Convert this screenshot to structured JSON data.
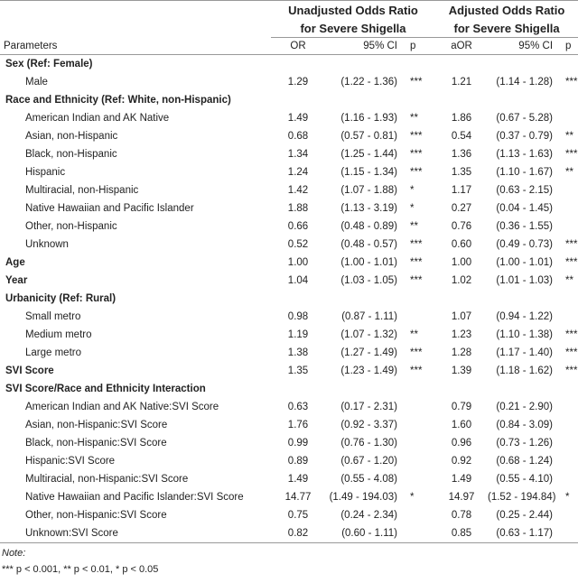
{
  "headers": {
    "group1_line1": "Unadjusted Odds Ratio",
    "group1_line2": "for Severe Shigella",
    "group2_line1": "Adjusted Odds Ratio",
    "group2_line2": "for Severe Shigella",
    "parameters": "Parameters",
    "or": "OR",
    "ci1": "95% CI",
    "p1": "p",
    "aor": "aOR",
    "ci2": "95% CI",
    "p2": "p"
  },
  "rows": [
    {
      "type": "section",
      "name": "Sex (Ref: Female)"
    },
    {
      "type": "sub",
      "name": "Male",
      "or": "1.29",
      "ci1": "(1.22 - 1.36)",
      "p1": "***",
      "aor": "1.21",
      "ci2": "(1.14 - 1.28)",
      "p2": "***"
    },
    {
      "type": "section",
      "name": "Race and Ethnicity (Ref: White, non-Hispanic)"
    },
    {
      "type": "sub",
      "name": "American Indian and AK Native",
      "or": "1.49",
      "ci1": "(1.16 - 1.93)",
      "p1": "**",
      "aor": "1.86",
      "ci2": "(0.67 - 5.28)",
      "p2": ""
    },
    {
      "type": "sub",
      "name": "Asian, non-Hispanic",
      "or": "0.68",
      "ci1": "(0.57 - 0.81)",
      "p1": "***",
      "aor": "0.54",
      "ci2": "(0.37 - 0.79)",
      "p2": "**"
    },
    {
      "type": "sub",
      "name": "Black, non-Hispanic",
      "or": "1.34",
      "ci1": "(1.25 - 1.44)",
      "p1": "***",
      "aor": "1.36",
      "ci2": "(1.13 - 1.63)",
      "p2": "***"
    },
    {
      "type": "sub",
      "name": "Hispanic",
      "or": "1.24",
      "ci1": "(1.15 - 1.34)",
      "p1": "***",
      "aor": "1.35",
      "ci2": "(1.10 - 1.67)",
      "p2": "**"
    },
    {
      "type": "sub",
      "name": "Multiracial, non-Hispanic",
      "or": "1.42",
      "ci1": "(1.07 - 1.88)",
      "p1": "*",
      "aor": "1.17",
      "ci2": "(0.63 - 2.15)",
      "p2": ""
    },
    {
      "type": "sub",
      "name": "Native Hawaiian and Pacific Islander",
      "or": "1.88",
      "ci1": "(1.13 - 3.19)",
      "p1": "*",
      "aor": "0.27",
      "ci2": "(0.04 - 1.45)",
      "p2": ""
    },
    {
      "type": "sub",
      "name": "Other, non-Hispanic",
      "or": "0.66",
      "ci1": "(0.48 - 0.89)",
      "p1": "**",
      "aor": "0.76",
      "ci2": "(0.36 - 1.55)",
      "p2": ""
    },
    {
      "type": "sub",
      "name": "Unknown",
      "or": "0.52",
      "ci1": "(0.48 - 0.57)",
      "p1": "***",
      "aor": "0.60",
      "ci2": "(0.49 - 0.73)",
      "p2": "***"
    },
    {
      "type": "section",
      "name": "Age",
      "or": "1.00",
      "ci1": "(1.00 - 1.01)",
      "p1": "***",
      "aor": "1.00",
      "ci2": "(1.00 - 1.01)",
      "p2": "***"
    },
    {
      "type": "section",
      "name": "Year",
      "or": "1.04",
      "ci1": "(1.03 - 1.05)",
      "p1": "***",
      "aor": "1.02",
      "ci2": "(1.01 - 1.03)",
      "p2": "**"
    },
    {
      "type": "section",
      "name": "Urbanicity (Ref: Rural)"
    },
    {
      "type": "sub",
      "name": "Small metro",
      "or": "0.98",
      "ci1": "(0.87 - 1.11)",
      "p1": "",
      "aor": "1.07",
      "ci2": "(0.94 - 1.22)",
      "p2": ""
    },
    {
      "type": "sub",
      "name": "Medium metro",
      "or": "1.19",
      "ci1": "(1.07 - 1.32)",
      "p1": "**",
      "aor": "1.23",
      "ci2": "(1.10 - 1.38)",
      "p2": "***"
    },
    {
      "type": "sub",
      "name": "Large metro",
      "or": "1.38",
      "ci1": "(1.27 - 1.49)",
      "p1": "***",
      "aor": "1.28",
      "ci2": "(1.17 - 1.40)",
      "p2": "***"
    },
    {
      "type": "section",
      "name": "SVI Score",
      "or": "1.35",
      "ci1": "(1.23 - 1.49)",
      "p1": "***",
      "aor": "1.39",
      "ci2": "(1.18 - 1.62)",
      "p2": "***"
    },
    {
      "type": "section",
      "name": "SVI Score/Race and Ethnicity Interaction"
    },
    {
      "type": "sub",
      "name": "American Indian and AK Native:SVI Score",
      "or": "0.63",
      "ci1": "(0.17 - 2.31)",
      "p1": "",
      "aor": "0.79",
      "ci2": "(0.21 - 2.90)",
      "p2": ""
    },
    {
      "type": "sub",
      "name": "Asian, non-Hispanic:SVI Score",
      "or": "1.76",
      "ci1": "(0.92 - 3.37)",
      "p1": "",
      "aor": "1.60",
      "ci2": "(0.84 - 3.09)",
      "p2": ""
    },
    {
      "type": "sub",
      "name": "Black, non-Hispanic:SVI Score",
      "or": "0.99",
      "ci1": "(0.76 - 1.30)",
      "p1": "",
      "aor": "0.96",
      "ci2": "(0.73 - 1.26)",
      "p2": ""
    },
    {
      "type": "sub",
      "name": "Hispanic:SVI Score",
      "or": "0.89",
      "ci1": "(0.67 - 1.20)",
      "p1": "",
      "aor": "0.92",
      "ci2": "(0.68 - 1.24)",
      "p2": ""
    },
    {
      "type": "sub",
      "name": "Multiracial, non-Hispanic:SVI Score",
      "or": "1.49",
      "ci1": "(0.55 - 4.08)",
      "p1": "",
      "aor": "1.49",
      "ci2": "(0.55 - 4.10)",
      "p2": ""
    },
    {
      "type": "sub",
      "name": "Native Hawaiian and Pacific Islander:SVI Score",
      "or": "14.77",
      "ci1": "(1.49 - 194.03)",
      "p1": "*",
      "aor": "14.97",
      "ci2": "(1.52 - 194.84)",
      "p2": "*"
    },
    {
      "type": "sub",
      "name": "Other, non-Hispanic:SVI Score",
      "or": "0.75",
      "ci1": "(0.24 - 2.34)",
      "p1": "",
      "aor": "0.78",
      "ci2": "(0.25 - 2.44)",
      "p2": ""
    },
    {
      "type": "sub",
      "name": "Unknown:SVI Score",
      "or": "0.82",
      "ci1": "(0.60 - 1.11)",
      "p1": "",
      "aor": "0.85",
      "ci2": "(0.63 - 1.17)",
      "p2": ""
    }
  ],
  "footer": {
    "note": "Note:",
    "legend": "*** p < 0.001, ** p < 0.01, * p < 0.05"
  }
}
